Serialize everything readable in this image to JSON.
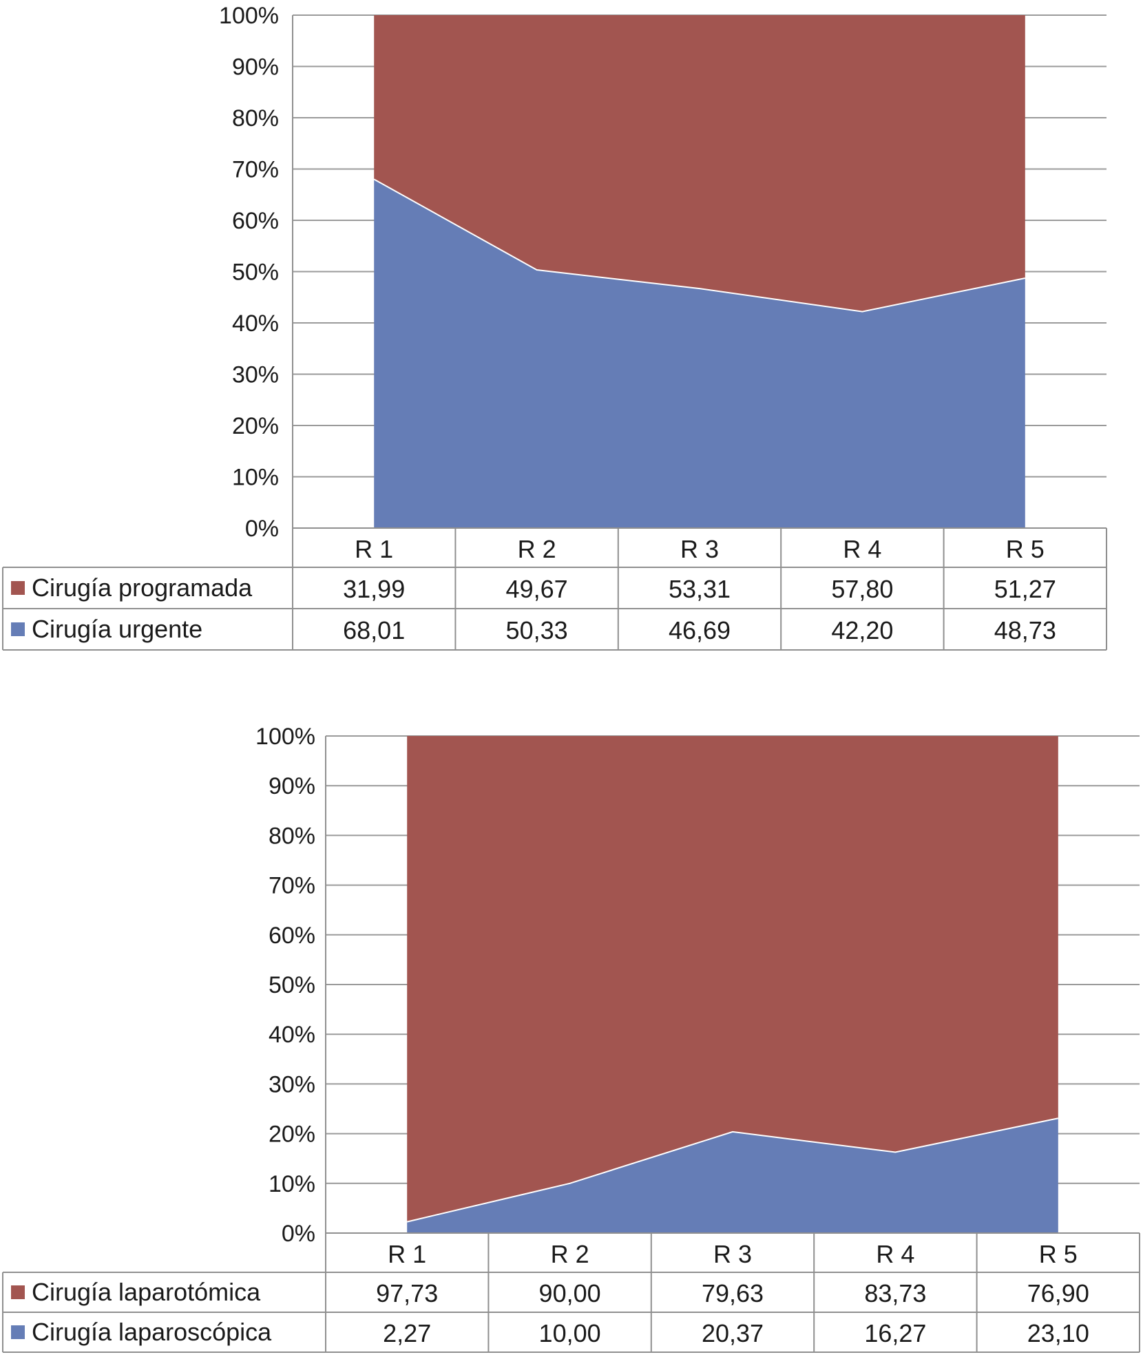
{
  "chart_data": [
    {
      "type": "area",
      "stacked": "percent",
      "categories": [
        "R 1",
        "R 2",
        "R 3",
        "R 4",
        "R 5"
      ],
      "y_ticks": [
        "0%",
        "10%",
        "20%",
        "30%",
        "40%",
        "50%",
        "60%",
        "70%",
        "80%",
        "90%",
        "100%"
      ],
      "ylim": [
        0,
        100
      ],
      "grid": true,
      "legend": "data-table-left",
      "series": [
        {
          "name": "Cirugía programada",
          "color": "#a25550",
          "values": [
            31.99,
            49.67,
            53.31,
            57.8,
            51.27
          ],
          "labels": [
            "31,99",
            "49,67",
            "53,31",
            "57,80",
            "51,27"
          ]
        },
        {
          "name": "Cirugía urgente",
          "color": "#657db6",
          "values": [
            68.01,
            50.33,
            46.69,
            42.2,
            48.73
          ],
          "labels": [
            "68,01",
            "50,33",
            "46,69",
            "42,20",
            "48,73"
          ]
        }
      ]
    },
    {
      "type": "area",
      "stacked": "percent",
      "categories": [
        "R 1",
        "R 2",
        "R 3",
        "R 4",
        "R 5"
      ],
      "y_ticks": [
        "0%",
        "10%",
        "20%",
        "30%",
        "40%",
        "50%",
        "60%",
        "70%",
        "80%",
        "90%",
        "100%"
      ],
      "ylim": [
        0,
        100
      ],
      "grid": true,
      "legend": "data-table-left",
      "series": [
        {
          "name": "Cirugía laparotómica",
          "color": "#a25550",
          "values": [
            97.73,
            90.0,
            79.63,
            83.73,
            76.9
          ],
          "labels": [
            "97,73",
            "90,00",
            "79,63",
            "83,73",
            "76,90"
          ]
        },
        {
          "name": "Cirugía laparoscópica",
          "color": "#657db6",
          "values": [
            2.27,
            10.0,
            20.37,
            16.27,
            23.1
          ],
          "labels": [
            "2,27",
            "10,00",
            "20,37",
            "16,27",
            "23,10"
          ]
        }
      ]
    }
  ]
}
